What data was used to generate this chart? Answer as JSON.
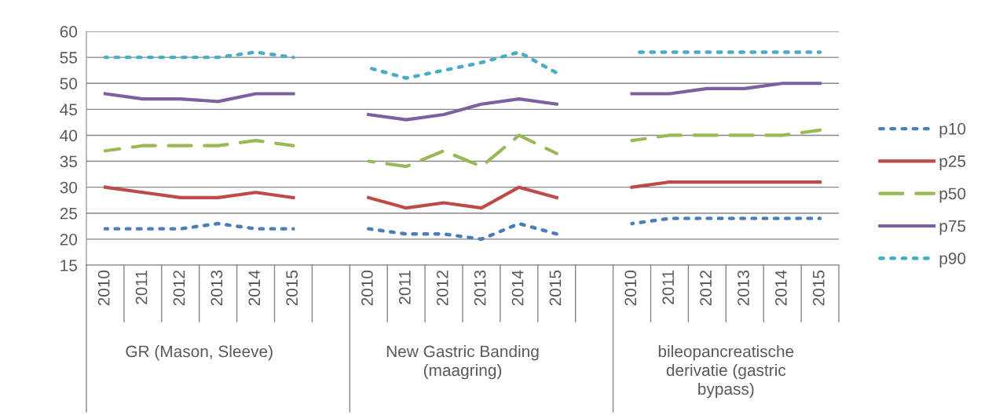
{
  "chart_data": {
    "type": "line",
    "categories": [
      "2010",
      "2011",
      "2012",
      "2013",
      "2014",
      "2015",
      null,
      "2010",
      "2011",
      "2012",
      "2013",
      "2014",
      "2015",
      null,
      "2010",
      "2011",
      "2012",
      "2013",
      "2014",
      "2015"
    ],
    "series": [
      {
        "name": "p10",
        "color": "#4a7ebb",
        "line_style": "dotted",
        "values": [
          22,
          22,
          22,
          23,
          22,
          22,
          null,
          22,
          21,
          21,
          20,
          23,
          21,
          null,
          23,
          24,
          24,
          24,
          24,
          24
        ]
      },
      {
        "name": "p25",
        "color": "#be4b48",
        "line_style": "solid",
        "values": [
          30,
          29,
          28,
          28,
          29,
          28,
          null,
          28,
          26,
          27,
          26,
          30,
          28,
          null,
          30,
          31,
          31,
          31,
          31,
          31
        ]
      },
      {
        "name": "p50",
        "color": "#98b954",
        "line_style": "dashed",
        "values": [
          37,
          38,
          38,
          38,
          39,
          38,
          null,
          35,
          34,
          37,
          34,
          40,
          36.5,
          null,
          39,
          40,
          40,
          40,
          40,
          41
        ]
      },
      {
        "name": "p75",
        "color": "#7d60a0",
        "line_style": "solid",
        "values": [
          48,
          47,
          47,
          46.5,
          48,
          48,
          null,
          44,
          43,
          44,
          46,
          47,
          46,
          null,
          48,
          48,
          49,
          49,
          50,
          50
        ]
      },
      {
        "name": "p90",
        "color": "#4bacc6",
        "line_style": "dotted",
        "values": [
          55,
          55,
          55,
          55,
          56,
          55,
          null,
          53,
          51,
          52.5,
          54,
          56,
          52,
          null,
          56,
          56,
          56,
          56,
          56,
          56
        ]
      }
    ],
    "ylim": [
      15,
      60
    ],
    "yticks": [
      15,
      20,
      25,
      30,
      35,
      40,
      45,
      50,
      55,
      60
    ],
    "grid": "y",
    "legend": "right",
    "marker": "none",
    "annotations": [
      "GR (Mason, Sleeve)",
      "New Gastric Banding\n(maagring)",
      "bileopancreatische\nderivatie (gastric\nbypass)"
    ]
  }
}
